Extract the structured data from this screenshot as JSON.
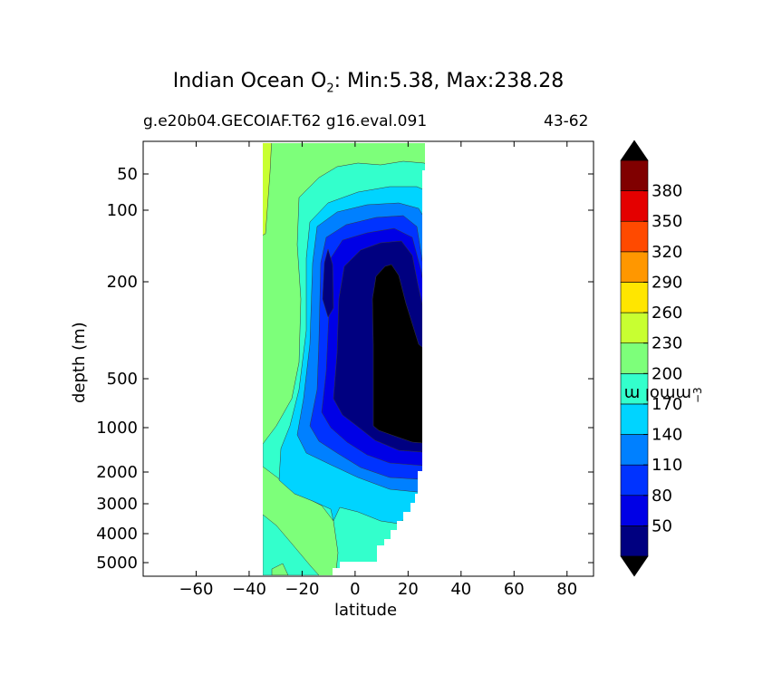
{
  "figure": {
    "title_prefix": "Indian Ocean O",
    "title_sub": "2",
    "title_suffix": ": Min:5.38, Max:238.28",
    "subtitle_left": "g.e20b04.GECOIAF.T62 g16.eval.091",
    "subtitle_right": "43-62"
  },
  "chart_data": {
    "type": "contourf",
    "title": "Indian Ocean O2: Min:5.38, Max:238.28",
    "xlabel": "latitude",
    "ylabel": "depth (m)",
    "xlim": [
      -80,
      90
    ],
    "ylim": [
      6000,
      25
    ],
    "yscale": "custom-stretched (0-500 m expanded)",
    "x_ticks": [
      -60,
      -40,
      -20,
      0,
      20,
      40,
      60,
      80
    ],
    "x_tick_labels": [
      "−60",
      "−40",
      "−20",
      "0",
      "20",
      "40",
      "60",
      "80"
    ],
    "y_ticks": [
      50,
      100,
      200,
      500,
      1000,
      2000,
      3000,
      4000,
      5000
    ],
    "y_tick_labels": [
      "50",
      "100",
      "200",
      "500",
      "1000",
      "2000",
      "3000",
      "4000",
      "5000"
    ],
    "data_x_range": [
      -34,
      26
    ],
    "min": 5.38,
    "max": 238.28,
    "colorbar": {
      "label": "mmol m",
      "label_exponent": "−3",
      "extend": "both",
      "levels": [
        20,
        50,
        80,
        110,
        140,
        170,
        200,
        230,
        260,
        290,
        320,
        350,
        380,
        410
      ],
      "tick_labels": [
        "50",
        "80",
        "110",
        "140",
        "170",
        "200",
        "230",
        "260",
        "290",
        "320",
        "350",
        "380"
      ],
      "colors": [
        "#000080",
        "#0000e6",
        "#0033ff",
        "#0080ff",
        "#00d4ff",
        "#33ffcc",
        "#7dff7a",
        "#c8ff31",
        "#ffe600",
        "#ff9700",
        "#ff4a00",
        "#e40000",
        "#800000"
      ],
      "under_color": "#000000",
      "over_color": "#000000"
    },
    "grid": false
  }
}
